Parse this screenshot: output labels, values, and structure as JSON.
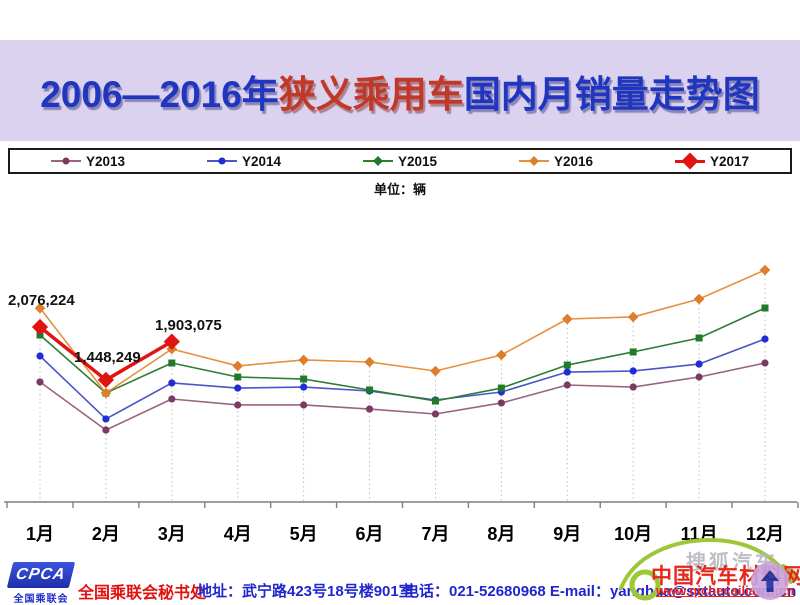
{
  "header": {
    "title_prefix": "2006—2016年",
    "title_highlight": "狭义乘用车",
    "title_suffix": "国内月销量走势图"
  },
  "unit_label": "单位：辆",
  "chart_data": {
    "type": "line",
    "categories": [
      "1月",
      "2月",
      "3月",
      "4月",
      "5月",
      "6月",
      "7月",
      "8月",
      "9月",
      "10月",
      "11月",
      "12月"
    ],
    "series": [
      {
        "name": "Y2013",
        "line_color": "#9a6382",
        "marker_color": "#7c3a62",
        "marker": "circle",
        "line_width": 1.6,
        "values": [
          1424000,
          854000,
          1222000,
          1151000,
          1151000,
          1103000,
          1044000,
          1175000,
          1388000,
          1364000,
          1483000,
          1649000
        ]
      },
      {
        "name": "Y2014",
        "line_color": "#4a55c8",
        "marker_color": "#1e2ed2",
        "marker": "circle",
        "line_width": 1.6,
        "values": [
          1732000,
          985000,
          1412000,
          1352000,
          1364000,
          1317000,
          1210000,
          1305000,
          1542000,
          1554000,
          1637000,
          1934000
        ]
      },
      {
        "name": "Y2015",
        "line_color": "#2f7d33",
        "marker_color": "#1f7a2a",
        "marker": "square",
        "line_width": 1.6,
        "values": [
          1981000,
          1293000,
          1649000,
          1483000,
          1459000,
          1329000,
          1198000,
          1352000,
          1625000,
          1780000,
          1946000,
          2302000
        ]
      },
      {
        "name": "Y2016",
        "line_color": "#e59140",
        "marker_color": "#dd7e2c",
        "marker": "diamond",
        "line_width": 1.6,
        "values": [
          2300000,
          1293000,
          1815000,
          1614000,
          1685000,
          1661000,
          1554000,
          1744000,
          2171000,
          2195000,
          2408000,
          2752000
        ]
      },
      {
        "name": "Y2017",
        "line_color": "#e11414",
        "marker_color": "#e11414",
        "marker": "diamond-large",
        "line_width": 3.5,
        "values": [
          2076224,
          1448249,
          1903075,
          null,
          null,
          null,
          null,
          null,
          null,
          null,
          null,
          null
        ]
      }
    ],
    "annotations": [
      {
        "series": "Y2017",
        "category": "1月",
        "value": 2076224,
        "text": "2,076,224"
      },
      {
        "series": "Y2017",
        "category": "2月",
        "value": 1448249,
        "text": "1,448,249"
      },
      {
        "series": "Y2017",
        "category": "3月",
        "value": 1903075,
        "text": "1,903,075"
      }
    ],
    "ylim": [
      0,
      3580000
    ],
    "grid": "vertical-drop-lines",
    "legend_position": "top",
    "axis_color": "#7f7f7f",
    "gridline_color": "#bfbfbf"
  },
  "footer": {
    "logo_text": "CPCA",
    "logo_sub": "全国乘联会",
    "secretariat": "全国乘联会秘书处",
    "address": "地址：武宁路423号18号楼901室",
    "contact": "电话：021-52680968  E-mail：yanghua@sxtauto.com.cn"
  },
  "watermark": {
    "sohu_text": "搜狐汽车",
    "site_name": "中国汽车材料网",
    "site_url": "www.qichecailiao.com",
    "car_color": "#9ec737",
    "arrow_color": "#1d2e9e"
  }
}
